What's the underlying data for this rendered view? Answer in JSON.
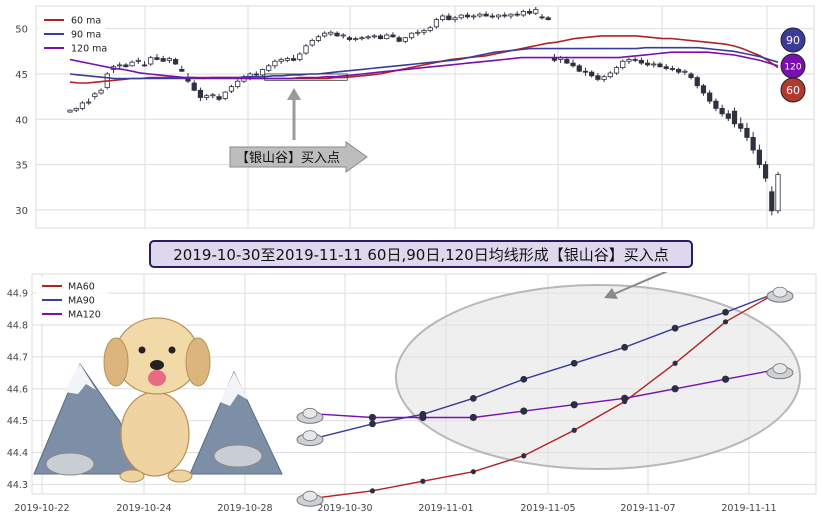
{
  "chart_data": [
    {
      "type": "candlestick",
      "ylim": [
        28,
        52.5
      ],
      "yticks": [
        30,
        35,
        40,
        45,
        50
      ],
      "legend_position": "top-left",
      "grid": true,
      "legend": [
        {
          "name": "60 ma",
          "color": "#b22222"
        },
        {
          "name": "90 ma",
          "color": "#3b3b9a"
        },
        {
          "name": "120 ma",
          "color": "#7a0fb0"
        }
      ],
      "annotation": {
        "text": "【银山谷】买入点"
      },
      "badges": [
        {
          "label": "90",
          "fill": "#3b3b9a"
        },
        {
          "label": "120",
          "fill": "#7a0fb0"
        },
        {
          "label": "60",
          "fill": "#b03a2e"
        }
      ],
      "ohlc": [
        [
          40.8,
          41.1,
          40.7,
          41.0
        ],
        [
          41.0,
          41.3,
          40.8,
          41.2
        ],
        [
          41.2,
          42.0,
          41.0,
          41.8
        ],
        [
          41.9,
          42.3,
          41.6,
          41.9
        ],
        [
          42.5,
          43.0,
          42.2,
          42.8
        ],
        [
          42.9,
          43.4,
          42.7,
          43.2
        ],
        [
          43.5,
          45.2,
          43.3,
          45.0
        ],
        [
          45.5,
          46.0,
          45.1,
          45.8
        ],
        [
          45.9,
          46.3,
          45.6,
          46.0
        ],
        [
          46.0,
          46.2,
          45.7,
          45.8
        ],
        [
          45.9,
          46.5,
          45.8,
          46.3
        ],
        [
          46.4,
          46.8,
          46.1,
          46.5
        ],
        [
          46.0,
          46.4,
          45.8,
          45.9
        ],
        [
          46.1,
          47.0,
          45.9,
          46.8
        ],
        [
          46.8,
          47.2,
          46.5,
          46.6
        ],
        [
          46.7,
          47.0,
          46.3,
          46.4
        ],
        [
          46.5,
          46.9,
          46.2,
          46.7
        ],
        [
          46.6,
          46.8,
          46.0,
          46.1
        ],
        [
          45.5,
          45.9,
          45.2,
          45.3
        ],
        [
          44.5,
          45.1,
          44.0,
          44.2
        ],
        [
          44.0,
          44.3,
          43.1,
          43.2
        ],
        [
          43.2,
          43.5,
          42.0,
          42.4
        ],
        [
          42.4,
          42.8,
          42.1,
          42.6
        ],
        [
          42.6,
          42.9,
          42.3,
          42.7
        ],
        [
          42.5,
          42.8,
          42.0,
          42.2
        ],
        [
          42.3,
          43.1,
          42.1,
          43.0
        ],
        [
          43.1,
          43.8,
          42.9,
          43.6
        ],
        [
          43.6,
          44.4,
          43.4,
          44.2
        ],
        [
          44.2,
          44.9,
          44.0,
          44.7
        ],
        [
          44.6,
          45.2,
          44.3,
          45.0
        ],
        [
          45.0,
          45.3,
          44.6,
          44.9
        ],
        [
          44.9,
          45.6,
          44.7,
          45.5
        ],
        [
          45.4,
          46.1,
          45.2,
          45.9
        ],
        [
          45.9,
          46.6,
          45.6,
          46.4
        ],
        [
          46.4,
          46.8,
          46.1,
          46.6
        ],
        [
          46.5,
          46.9,
          46.3,
          46.7
        ],
        [
          46.7,
          47.1,
          46.4,
          46.5
        ],
        [
          46.6,
          47.4,
          46.4,
          47.2
        ],
        [
          47.3,
          48.3,
          47.1,
          48.1
        ],
        [
          48.2,
          48.9,
          48.0,
          48.7
        ],
        [
          48.7,
          49.3,
          48.5,
          49.1
        ],
        [
          49.2,
          49.7,
          49.0,
          49.5
        ],
        [
          49.4,
          49.8,
          49.2,
          49.6
        ],
        [
          49.5,
          49.7,
          49.1,
          49.2
        ],
        [
          49.2,
          49.5,
          48.9,
          49.3
        ],
        [
          49.0,
          49.2,
          48.6,
          48.8
        ],
        [
          48.8,
          49.1,
          48.6,
          48.9
        ],
        [
          48.9,
          49.2,
          48.7,
          49.0
        ],
        [
          49.0,
          49.3,
          48.8,
          49.1
        ],
        [
          49.1,
          49.4,
          48.9,
          49.2
        ],
        [
          49.2,
          49.4,
          48.8,
          48.9
        ],
        [
          48.9,
          49.5,
          48.8,
          49.3
        ],
        [
          49.3,
          49.6,
          49.0,
          49.1
        ],
        [
          49.0,
          49.2,
          48.5,
          48.6
        ],
        [
          48.6,
          49.1,
          48.4,
          49.0
        ],
        [
          49.0,
          49.6,
          48.8,
          49.5
        ],
        [
          49.5,
          49.9,
          49.2,
          49.6
        ],
        [
          49.6,
          50.0,
          49.3,
          49.8
        ],
        [
          49.8,
          50.3,
          49.6,
          50.1
        ],
        [
          50.2,
          51.2,
          50.0,
          51.0
        ],
        [
          51.0,
          51.6,
          50.8,
          51.4
        ],
        [
          51.4,
          51.7,
          50.9,
          51.0
        ],
        [
          51.0,
          51.4,
          50.7,
          51.2
        ],
        [
          51.2,
          51.6,
          51.0,
          51.5
        ],
        [
          51.5,
          51.8,
          51.1,
          51.3
        ],
        [
          51.3,
          51.6,
          51.0,
          51.4
        ],
        [
          51.4,
          51.8,
          51.2,
          51.6
        ],
        [
          51.6,
          51.9,
          51.3,
          51.4
        ],
        [
          51.4,
          51.7,
          51.1,
          51.3
        ],
        [
          51.3,
          51.6,
          51.0,
          51.5
        ],
        [
          51.5,
          51.8,
          51.2,
          51.4
        ],
        [
          51.4,
          51.7,
          51.1,
          51.6
        ],
        [
          51.6,
          51.9,
          51.3,
          51.5
        ],
        [
          51.5,
          52.1,
          51.3,
          51.9
        ],
        [
          51.9,
          52.2,
          51.5,
          51.7
        ],
        [
          51.7,
          52.4,
          51.5,
          52.1
        ],
        [
          51.3,
          51.6,
          51.0,
          51.2
        ],
        [
          51.2,
          51.4,
          50.9,
          51.0
        ],
        [
          46.8,
          47.2,
          46.3,
          46.5
        ],
        [
          46.6,
          47.0,
          46.2,
          46.8
        ],
        [
          46.6,
          46.9,
          46.1,
          46.2
        ],
        [
          46.2,
          46.6,
          45.7,
          45.9
        ],
        [
          45.9,
          46.1,
          45.2,
          45.3
        ],
        [
          45.3,
          45.7,
          44.8,
          45.2
        ],
        [
          45.2,
          45.4,
          44.6,
          44.8
        ],
        [
          44.8,
          45.1,
          44.2,
          44.4
        ],
        [
          44.4,
          44.9,
          44.1,
          44.7
        ],
        [
          44.7,
          45.3,
          44.5,
          45.1
        ],
        [
          45.1,
          45.9,
          44.9,
          45.7
        ],
        [
          45.7,
          46.6,
          45.5,
          46.4
        ],
        [
          46.4,
          46.8,
          46.1,
          46.6
        ],
        [
          46.6,
          46.9,
          46.3,
          46.5
        ],
        [
          46.5,
          46.8,
          46.0,
          46.2
        ],
        [
          46.2,
          46.6,
          45.8,
          46.0
        ],
        [
          46.0,
          46.4,
          45.7,
          46.1
        ],
        [
          46.1,
          46.3,
          45.7,
          45.8
        ],
        [
          45.8,
          46.1,
          45.4,
          45.6
        ],
        [
          45.6,
          45.9,
          45.3,
          45.5
        ],
        [
          45.5,
          45.7,
          45.0,
          45.2
        ],
        [
          45.2,
          45.5,
          44.9,
          45.3
        ],
        [
          45.0,
          45.2,
          44.4,
          44.6
        ],
        [
          44.6,
          44.8,
          43.4,
          43.7
        ],
        [
          43.7,
          43.9,
          42.6,
          42.9
        ],
        [
          42.9,
          43.2,
          41.7,
          42.0
        ],
        [
          42.0,
          42.3,
          40.9,
          41.2
        ],
        [
          41.2,
          41.6,
          40.3,
          40.6
        ],
        [
          40.6,
          41.0,
          39.8,
          40.1
        ],
        [
          40.9,
          41.3,
          39.1,
          39.5
        ],
        [
          39.5,
          40.2,
          38.6,
          39.0
        ],
        [
          39.0,
          39.6,
          37.6,
          38.0
        ],
        [
          38.0,
          38.6,
          36.2,
          36.6
        ],
        [
          36.6,
          37.2,
          34.6,
          35.0
        ],
        [
          35.0,
          35.4,
          33.1,
          33.5
        ],
        [
          32.0,
          32.6,
          29.4,
          29.9
        ],
        [
          29.9,
          34.2,
          29.6,
          33.9
        ]
      ],
      "ma60": [
        44.1,
        44.0,
        44.0,
        44.1,
        44.2,
        44.3,
        44.4,
        44.5,
        44.5,
        44.6,
        44.6,
        44.6,
        44.6,
        44.6,
        44.6,
        44.6,
        44.6,
        44.6,
        44.6,
        44.6,
        44.5,
        44.5,
        44.5,
        44.5,
        44.5,
        44.5,
        44.5,
        44.5,
        44.5,
        44.5,
        44.6,
        44.6,
        44.7,
        44.8,
        44.9,
        45.0,
        45.2,
        45.4,
        45.6,
        45.8,
        46.0,
        46.2,
        46.4,
        46.6,
        46.7,
        46.8,
        46.9,
        47.0,
        47.2,
        47.4,
        47.6,
        47.8,
        48.0,
        48.2,
        48.4,
        48.5,
        48.7,
        48.9,
        49.0,
        49.1,
        49.2,
        49.2,
        49.2,
        49.2,
        49.2,
        49.1,
        49.0,
        48.9,
        48.9,
        48.8,
        48.7,
        48.6,
        48.5,
        48.4,
        48.3,
        48.1,
        47.8,
        47.4,
        47.0,
        46.4,
        45.7
      ],
      "ma90": [
        45.0,
        44.9,
        44.8,
        44.7,
        44.6,
        44.5,
        44.5,
        44.5,
        44.5,
        44.5,
        44.5,
        44.5,
        44.5,
        44.5,
        44.5,
        44.5,
        44.6,
        44.6,
        44.6,
        44.6,
        44.7,
        44.7,
        44.7,
        44.8,
        44.8,
        44.9,
        44.9,
        45.0,
        45.0,
        45.1,
        45.2,
        45.3,
        45.4,
        45.5,
        45.6,
        45.7,
        45.8,
        45.9,
        46.0,
        46.1,
        46.2,
        46.3,
        46.4,
        46.5,
        46.6,
        46.8,
        47.0,
        47.2,
        47.4,
        47.5,
        47.6,
        47.7,
        47.8,
        47.8,
        47.8,
        47.8,
        47.8,
        47.8,
        47.8,
        47.8,
        47.8,
        47.8,
        47.8,
        47.8,
        47.8,
        47.9,
        47.9,
        47.9,
        47.9,
        47.9,
        47.9,
        47.9,
        47.8,
        47.7,
        47.6,
        47.5,
        47.3,
        47.1,
        46.9,
        46.6,
        46.3
      ],
      "ma120": [
        46.6,
        46.4,
        46.2,
        46.0,
        45.8,
        45.6,
        45.5,
        45.3,
        45.1,
        45.0,
        44.9,
        44.8,
        44.7,
        44.6,
        44.6,
        44.5,
        44.5,
        44.5,
        44.5,
        44.5,
        44.5,
        44.5,
        44.5,
        44.5,
        44.5,
        44.5,
        44.6,
        44.6,
        44.6,
        44.7,
        44.7,
        44.8,
        44.9,
        45.0,
        45.1,
        45.2,
        45.3,
        45.4,
        45.5,
        45.6,
        45.7,
        45.8,
        45.9,
        46.0,
        46.1,
        46.2,
        46.3,
        46.4,
        46.5,
        46.6,
        46.7,
        46.8,
        46.8,
        46.8,
        46.8,
        46.8,
        46.8,
        46.8,
        46.8,
        46.8,
        46.8,
        46.8,
        46.8,
        46.9,
        47.0,
        47.1,
        47.2,
        47.3,
        47.4,
        47.4,
        47.4,
        47.4,
        47.4,
        47.3,
        47.2,
        47.1,
        46.9,
        46.7,
        46.5,
        46.2,
        45.9
      ]
    },
    {
      "type": "line",
      "title": "2019-10-30至2019-11-11 60日,90日,120日均线形成【银山谷】买入点",
      "categories": [
        "2019-10-22",
        "2019-10-24",
        "2019-10-28",
        "2019-10-30",
        "2019-11-01",
        "2019-11-05",
        "2019-11-07",
        "2019-11-11"
      ],
      "ylim": [
        44.27,
        44.96
      ],
      "yticks": [
        44.3,
        44.4,
        44.5,
        44.6,
        44.7,
        44.8,
        44.9
      ],
      "legend_position": "top-left",
      "grid": true,
      "x": [
        "2019-10-30",
        "2019-10-31",
        "2019-11-01",
        "2019-11-04",
        "2019-11-05",
        "2019-11-06",
        "2019-11-07",
        "2019-11-08",
        "2019-11-11",
        "2019-11-12"
      ],
      "series": [
        {
          "name": "MA60",
          "color": "#b22222",
          "values": [
            44.26,
            44.28,
            44.31,
            44.34,
            44.39,
            44.47,
            44.56,
            44.68,
            44.81,
            44.9
          ]
        },
        {
          "name": "MA90",
          "color": "#3b3b9a",
          "values": [
            44.45,
            44.49,
            44.52,
            44.57,
            44.63,
            44.68,
            44.73,
            44.79,
            44.84,
            44.9
          ]
        },
        {
          "name": "MA120",
          "color": "#7a0fb0",
          "values": [
            44.52,
            44.51,
            44.51,
            44.51,
            44.53,
            44.55,
            44.57,
            44.6,
            44.63,
            44.66
          ]
        }
      ]
    }
  ]
}
